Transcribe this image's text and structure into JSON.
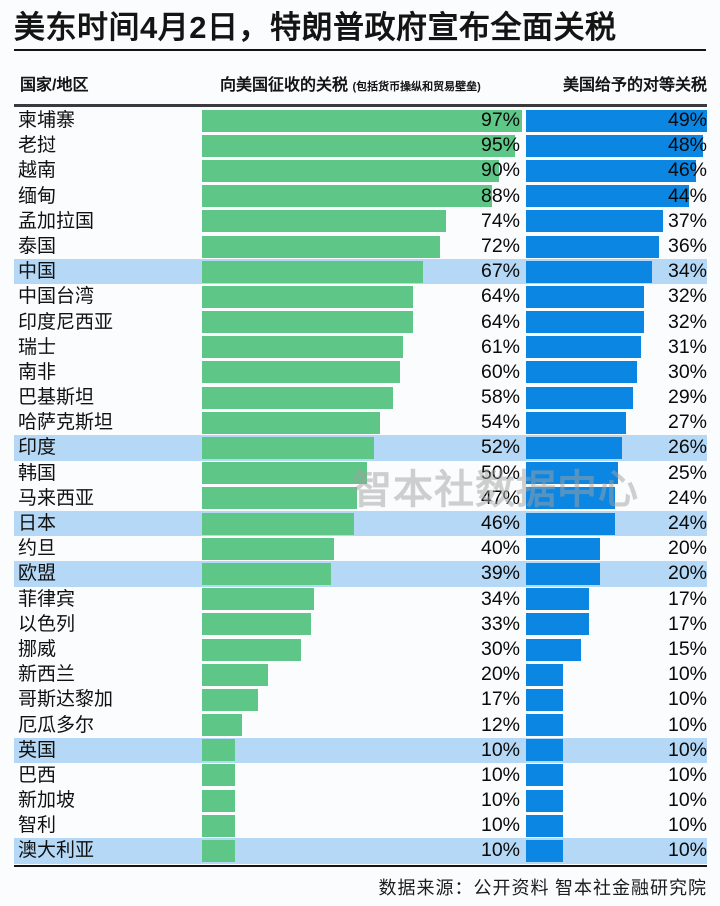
{
  "page": {
    "title": "美东时间4月2日，特朗普政府宣布全面关税",
    "watermark": "智本社数据中心",
    "source_note": "数据来源：公开资料  智本社金融研究院"
  },
  "columns": {
    "country": "国家/地区",
    "charged": "向美国征收的关税",
    "charged_note": "(包括货币操纵和贸易壁垒)",
    "reciprocal": "美国给予的对等关税"
  },
  "colors": {
    "charged_bar": "#5ec687",
    "reciprocal_bar": "#0b86e3",
    "highlight_row": "#b4d8f5",
    "header_rule": "#3a3a3e",
    "text": "#141414",
    "background": "#fbfcfd"
  },
  "chart_data": {
    "type": "bar",
    "orientation": "horizontal",
    "unit": "%",
    "title": "美东时间4月2日，特朗普政府宣布全面关税",
    "categories": [
      "柬埔寨",
      "老挝",
      "越南",
      "缅甸",
      "孟加拉国",
      "泰国",
      "中国",
      "中国台湾",
      "印度尼西亚",
      "瑞士",
      "南非",
      "巴基斯坦",
      "哈萨克斯坦",
      "印度",
      "韩国",
      "马来西亚",
      "日本",
      "约旦",
      "欧盟",
      "菲律宾",
      "以色列",
      "挪威",
      "新西兰",
      "哥斯达黎加",
      "厄瓜多尔",
      "英国",
      "巴西",
      "新加坡",
      "智利",
      "澳大利亚"
    ],
    "series": [
      {
        "name": "向美国征收的关税(包括货币操纵和贸易壁垒)",
        "color": "#5ec687",
        "values": [
          97,
          95,
          90,
          88,
          74,
          72,
          67,
          64,
          64,
          61,
          60,
          58,
          54,
          52,
          50,
          47,
          46,
          40,
          39,
          34,
          33,
          30,
          20,
          17,
          12,
          10,
          10,
          10,
          10,
          10
        ]
      },
      {
        "name": "美国给予的对等关税",
        "color": "#0b86e3",
        "values": [
          49,
          48,
          46,
          44,
          37,
          36,
          34,
          32,
          32,
          31,
          30,
          29,
          27,
          26,
          25,
          24,
          24,
          20,
          20,
          17,
          17,
          15,
          10,
          10,
          10,
          10,
          10,
          10,
          10,
          10
        ]
      }
    ],
    "highlighted_categories": [
      "中国",
      "印度",
      "日本",
      "欧盟",
      "英国",
      "澳大利亚"
    ],
    "axis": {
      "charged_max": 97,
      "reciprocal_max": 49
    },
    "grid": false,
    "legend": false,
    "value_labels_shown": true
  }
}
